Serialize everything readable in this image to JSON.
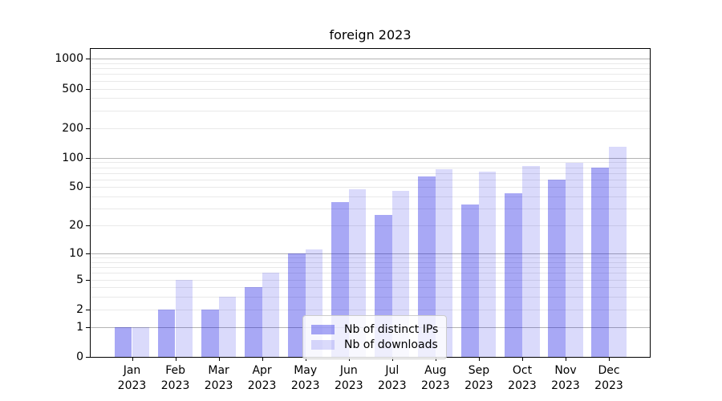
{
  "chart_data": {
    "type": "bar",
    "title": "foreign 2023",
    "xlabel": "",
    "ylabel": "",
    "scale": "log10(value+1)",
    "ylim": [
      0,
      1255
    ],
    "grid": true,
    "legend_position": "lower center",
    "categories": [
      "Jan",
      "Feb",
      "Mar",
      "Apr",
      "May",
      "Jun",
      "Jul",
      "Aug",
      "Sep",
      "Oct",
      "Nov",
      "Dec"
    ],
    "x_tick_second_line": "2023",
    "y_ticks": [
      0,
      1,
      2,
      5,
      10,
      20,
      50,
      100,
      200,
      500,
      1000
    ],
    "y_major_gridlines": [
      1,
      10,
      100,
      1000
    ],
    "series": [
      {
        "key": "distinct-ips",
        "name": "Nb of distinct IPs",
        "color": "rgba(0, 0, 225, 0.34)",
        "values": [
          1,
          2,
          2,
          4,
          10,
          35,
          26,
          65,
          33,
          43,
          60,
          80
        ]
      },
      {
        "key": "downloads",
        "name": "Nb of downloads",
        "color": "rgba(0, 0, 225, 0.145)",
        "values": [
          1,
          5,
          3,
          6,
          11,
          48,
          46,
          76,
          72,
          83,
          88,
          130
        ]
      }
    ]
  },
  "colors": {
    "background": "#ffffff",
    "spine": "#000000",
    "text": "#000000",
    "grid_major": "#b3b3b3",
    "grid_minor": "#e9e9e9",
    "legend_bg": "rgba(255,255,255,0.8)",
    "legend_border": "#cccccc"
  }
}
